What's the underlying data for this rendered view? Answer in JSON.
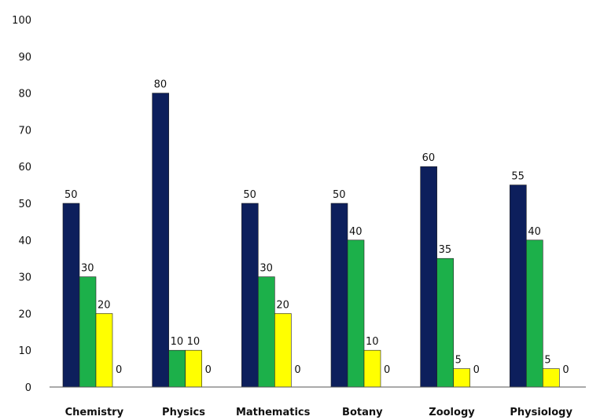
{
  "chart_data": {
    "type": "bar",
    "title": "",
    "xlabel": "",
    "ylabel": "",
    "ylim": [
      0,
      100
    ],
    "yticks": [
      0,
      10,
      20,
      30,
      40,
      50,
      60,
      70,
      80,
      90,
      100
    ],
    "categories": [
      "Chemistry",
      "Physics",
      "Mathematics",
      "Botany",
      "Zoology",
      "Physiology"
    ],
    "series": [
      {
        "values": [
          50,
          80,
          50,
          50,
          60,
          55
        ],
        "color": "#0d1f5c"
      },
      {
        "values": [
          30,
          10,
          30,
          40,
          35,
          40
        ],
        "color": "#1cb04a"
      },
      {
        "values": [
          20,
          10,
          20,
          10,
          5,
          5
        ],
        "color": "#ffff00"
      },
      {
        "values": [
          0,
          0,
          0,
          0,
          0,
          0
        ],
        "color": "#7f7f7f"
      }
    ],
    "data_labels": [
      [
        "50",
        "80",
        "50",
        "50",
        "60",
        "55"
      ],
      [
        "30",
        "10",
        "30",
        "40",
        "35",
        "40"
      ],
      [
        "20",
        "10",
        "20",
        "10",
        "5",
        "5"
      ],
      [
        "0",
        "0",
        "0",
        "0",
        "0",
        "0"
      ]
    ],
    "grid": false,
    "legend": "none"
  }
}
